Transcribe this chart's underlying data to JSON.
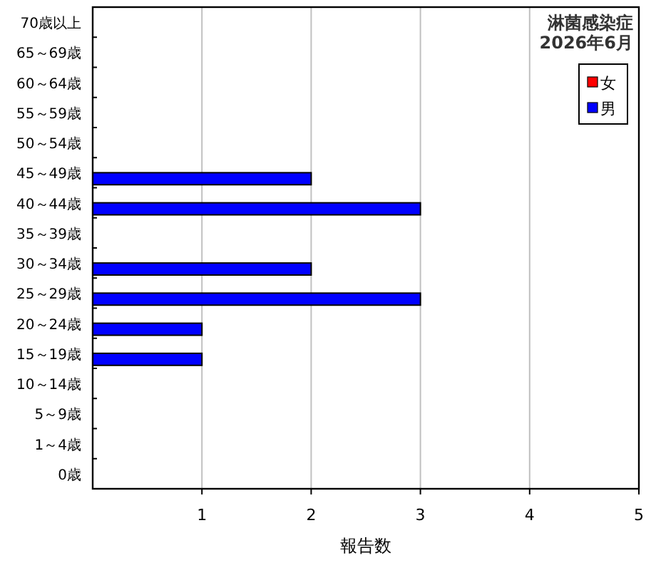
{
  "chart_data": {
    "type": "bar",
    "orientation": "horizontal",
    "title": "淋菌感染症",
    "subtitle": "2026年6月",
    "xlabel": "報告数",
    "categories": [
      "70歳以上",
      "65～69歳",
      "60～64歳",
      "55～59歳",
      "50～54歳",
      "45～49歳",
      "40～44歳",
      "35～39歳",
      "30～34歳",
      "25～29歳",
      "20～24歳",
      "15～19歳",
      "10～14歳",
      "5～9歳",
      "1～4歳",
      "0歳"
    ],
    "series": [
      {
        "name": "女",
        "color": "#ff0000",
        "values": [
          0,
          0,
          0,
          0,
          0,
          0,
          0,
          0,
          0,
          0,
          0,
          0,
          0,
          0,
          0,
          0
        ]
      },
      {
        "name": "男",
        "color": "#0000ff",
        "values": [
          0,
          0,
          0,
          0,
          0,
          2,
          3,
          0,
          2,
          3,
          1,
          1,
          0,
          0,
          0,
          0
        ]
      }
    ],
    "xlim": [
      0,
      5
    ],
    "xticks": [
      1,
      2,
      3,
      4,
      5
    ],
    "grid": "x",
    "legend": "top right"
  }
}
